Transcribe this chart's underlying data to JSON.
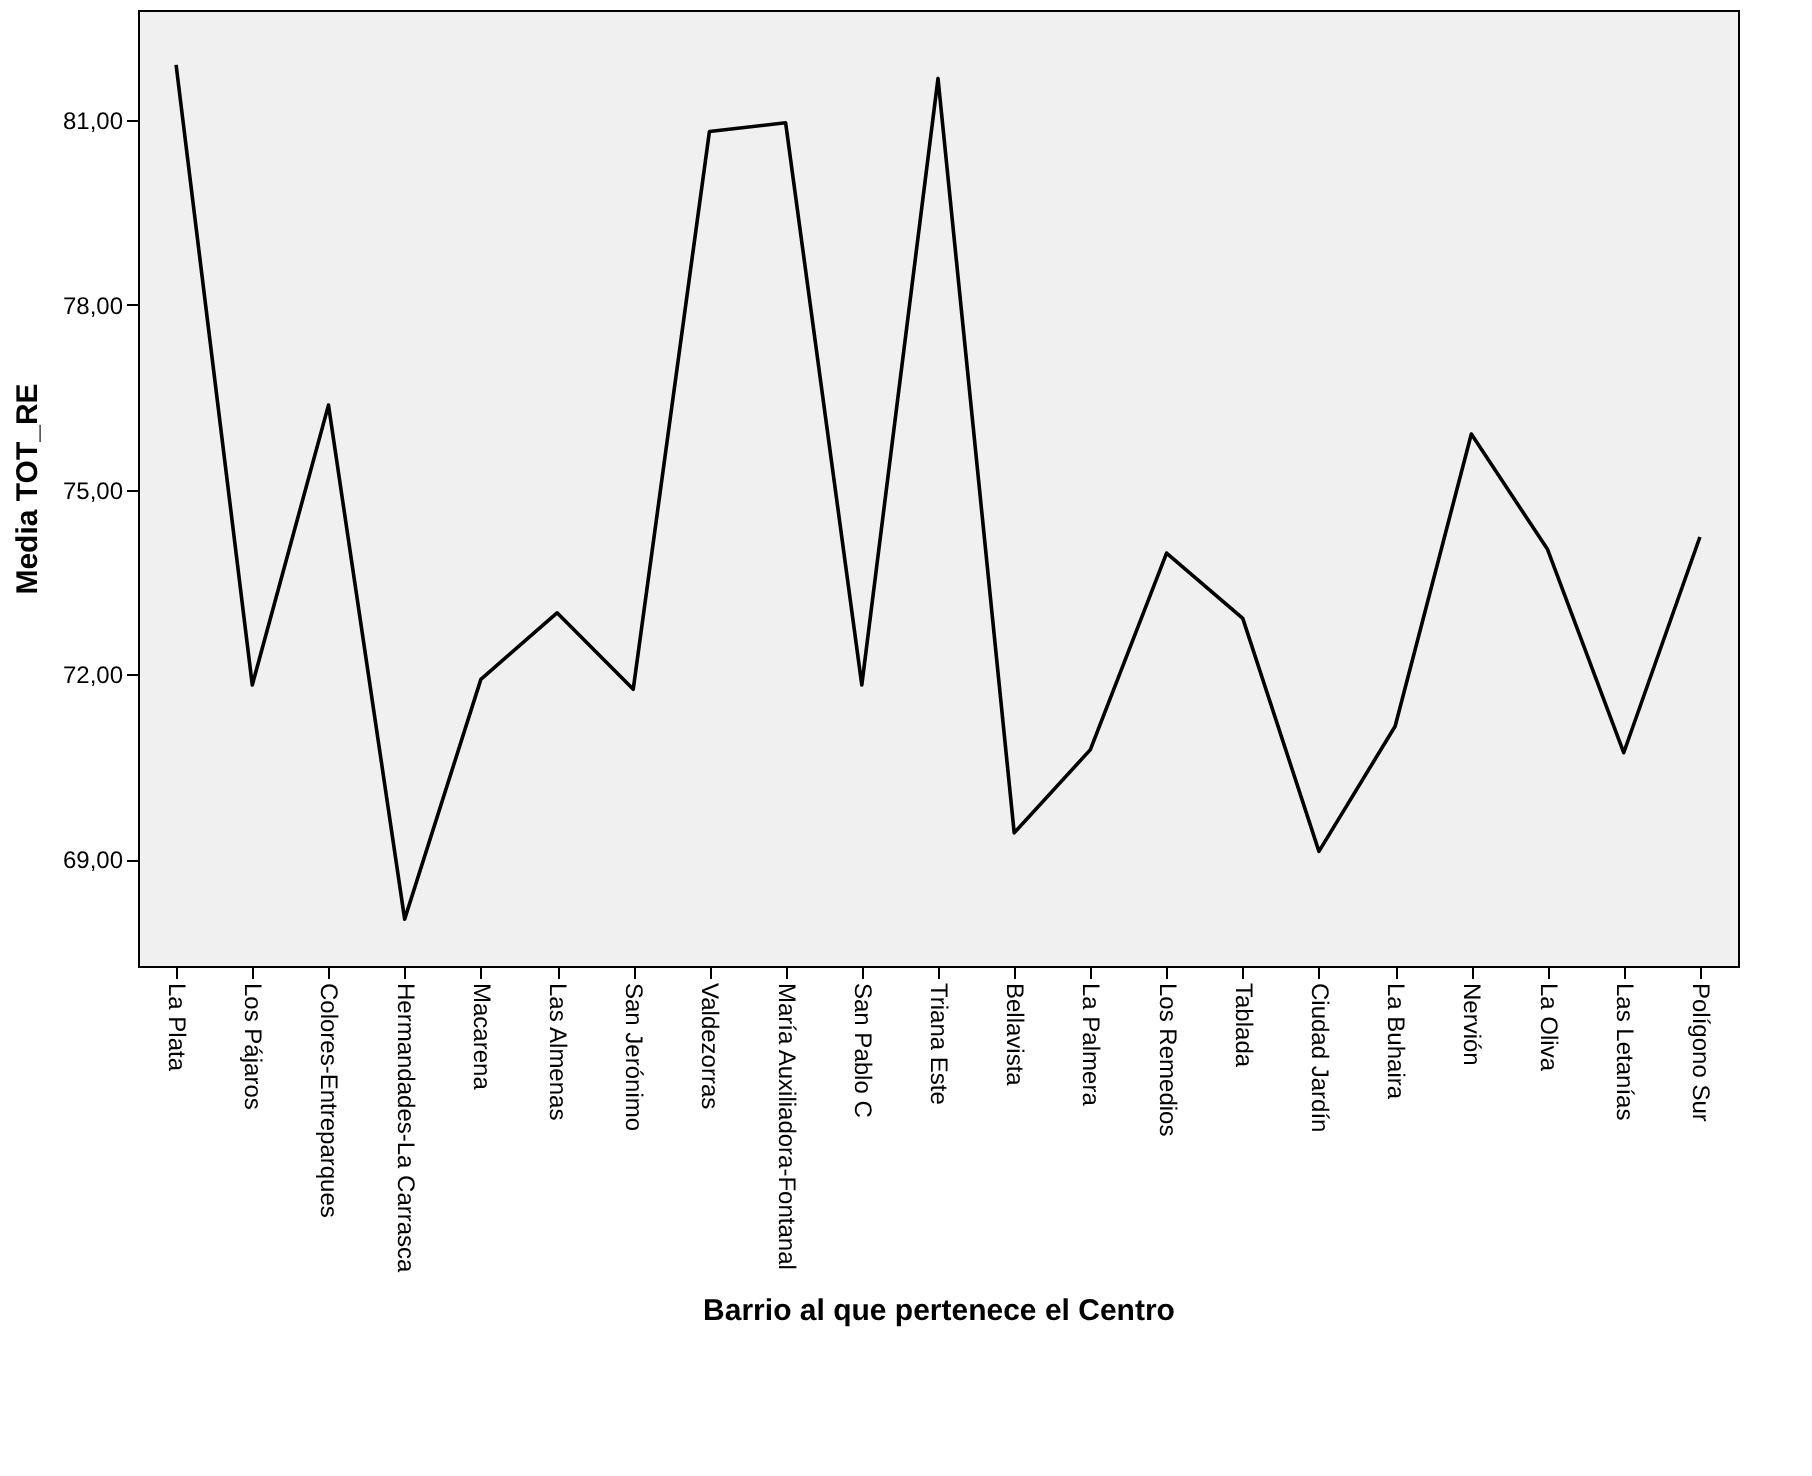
{
  "chart_data": {
    "type": "line",
    "xlabel": "Barrio al que pertenece el Centro",
    "ylabel": "Media TOT_RE",
    "categories": [
      "La Plata",
      "Los Pájaros",
      "Colores-Entreparques",
      "Hermandades-La Carrasca",
      "Macarena",
      "Las Almenas",
      "San Jerónimo",
      "Valdezorras",
      "María Auxiliadora-Fontanal",
      "San Pablo C",
      "Triana Este",
      "Bellavista",
      "La Palmera",
      "Los Remedios",
      "Tablada",
      "Ciudad Jardín",
      "La Buhaira",
      "Nervión",
      "La Oliva",
      "Las Letanías",
      "Polígono Sur"
    ],
    "series": [
      {
        "color": "#000000",
        "values": [
          81.89,
          71.83,
          76.37,
          68.03,
          71.92,
          73.0,
          71.76,
          80.81,
          80.95,
          71.83,
          81.67,
          69.43,
          70.78,
          73.97,
          72.91,
          69.13,
          71.16,
          75.9,
          74.03,
          70.73,
          74.23
        ]
      }
    ],
    "ylim": [
      67.27,
      82.78
    ],
    "yticks": [
      {
        "value": 69,
        "label": "69,00"
      },
      {
        "value": 72,
        "label": "72,00"
      },
      {
        "value": 75,
        "label": "75,00"
      },
      {
        "value": 78,
        "label": "78,00"
      },
      {
        "value": 81,
        "label": "81,00"
      }
    ],
    "grid": false,
    "marker": "none",
    "line_style": "solid"
  }
}
